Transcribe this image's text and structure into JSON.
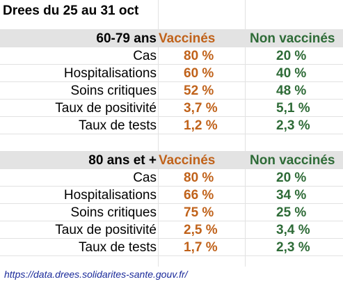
{
  "title": "Drees du 25 au 31 oct",
  "columns": {
    "vaccinated": "Vaccinés",
    "unvaccinated": "Non vaccinés"
  },
  "groups": [
    {
      "label": "60-79 ans",
      "rows": [
        {
          "metric": "Cas",
          "vaccinated": "80 %",
          "unvaccinated": "20 %"
        },
        {
          "metric": "Hospitalisations",
          "vaccinated": "60 %",
          "unvaccinated": "40 %"
        },
        {
          "metric": "Soins critiques",
          "vaccinated": "52 %",
          "unvaccinated": "48 %"
        },
        {
          "metric": "Taux de positivité",
          "vaccinated": "3,7 %",
          "unvaccinated": "5,1 %"
        },
        {
          "metric": "Taux de tests",
          "vaccinated": "1,2 %",
          "unvaccinated": "2,3 %"
        }
      ]
    },
    {
      "label": "80 ans et +",
      "rows": [
        {
          "metric": "Cas",
          "vaccinated": "80 %",
          "unvaccinated": "20 %"
        },
        {
          "metric": "Hospitalisations",
          "vaccinated": "66 %",
          "unvaccinated": "34 %"
        },
        {
          "metric": "Soins critiques",
          "vaccinated": "75 %",
          "unvaccinated": "25 %"
        },
        {
          "metric": "Taux de positivité",
          "vaccinated": "2,5 %",
          "unvaccinated": "3,4 %"
        },
        {
          "metric": "Taux de tests",
          "vaccinated": "1,7 %",
          "unvaccinated": "2,3 %"
        }
      ]
    }
  ],
  "source_link": "https://data.drees.solidarites-sante.gouv.fr/",
  "colors": {
    "vaccinated": "#c0621a",
    "unvaccinated": "#2e6b37",
    "header_bg": "#e3e3e3"
  }
}
